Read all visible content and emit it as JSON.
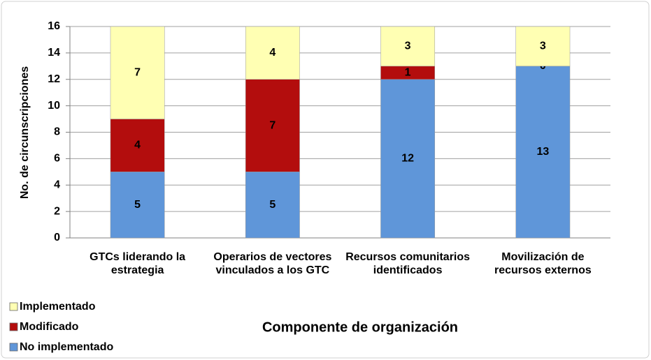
{
  "chart_data": {
    "type": "stacked_bar",
    "x_label": "Componente de organización",
    "y_label": "No. de circunscripciones",
    "categories": [
      "GTCs liderando la estrategia",
      "Operarios de vectores vinculados a los GTC",
      "Recursos comunitarios identificados",
      "Movilización de recursos externos"
    ],
    "series": [
      {
        "name": "No implementado",
        "color": "#5f96d9",
        "values": [
          5,
          5,
          12,
          13
        ]
      },
      {
        "name": "Modificado",
        "color": "#b30d0d",
        "values": [
          4,
          7,
          1,
          0
        ]
      },
      {
        "name": "Implementado",
        "color": "#ffffb3",
        "values": [
          7,
          4,
          3,
          3
        ]
      }
    ],
    "ylim": [
      0,
      16
    ],
    "yticks": [
      0,
      2,
      4,
      6,
      8,
      10,
      12,
      14,
      16
    ],
    "grid": true,
    "legend": "bottom-left"
  }
}
